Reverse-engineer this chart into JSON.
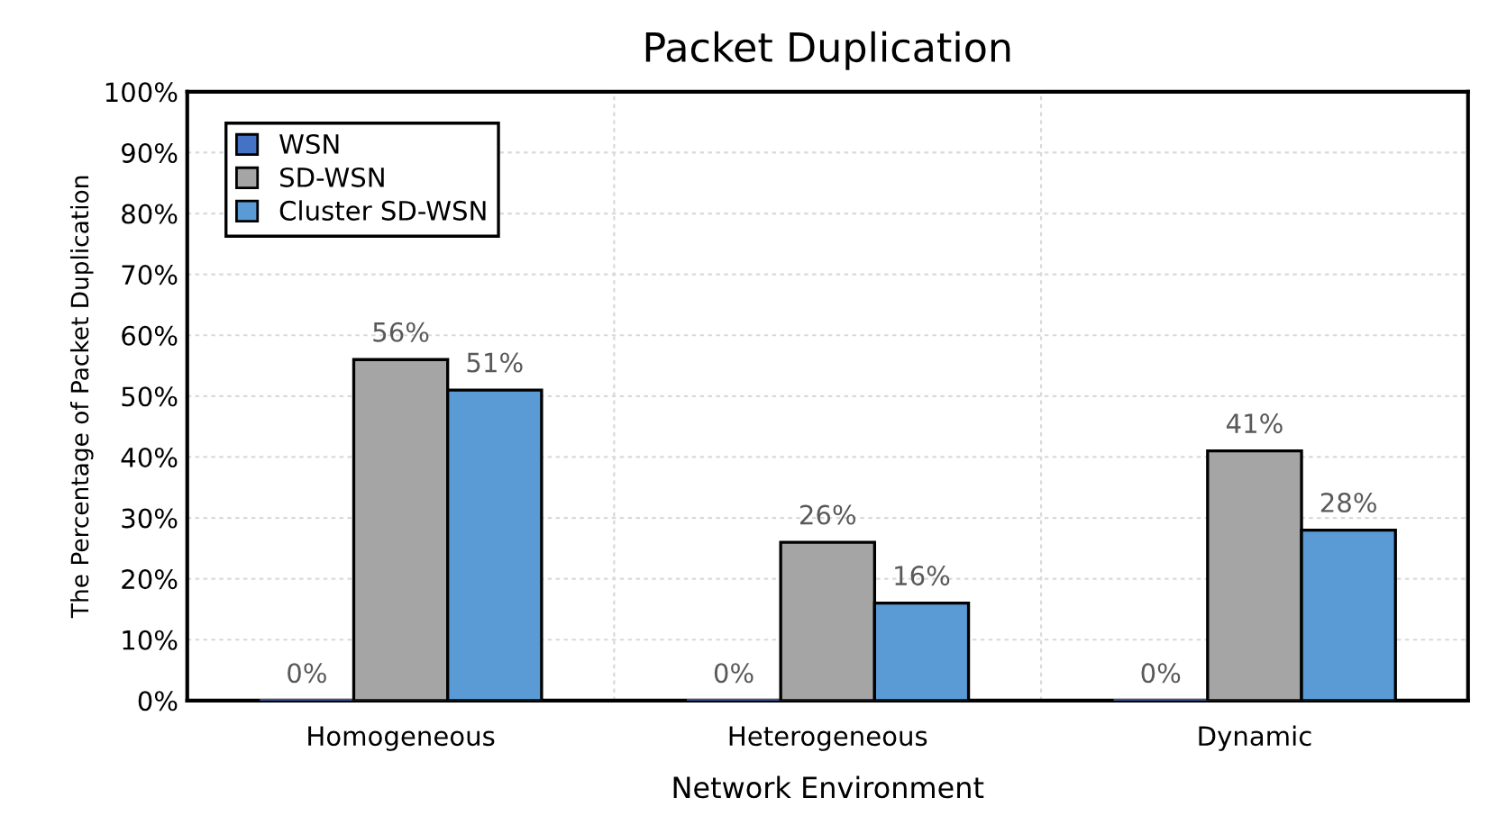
{
  "chart_data": {
    "type": "bar",
    "title": "Packet Duplication",
    "xlabel": "Network Environment",
    "ylabel": "The Percentage of Packet Duplication",
    "categories": [
      "Homogeneous",
      "Heterogeneous",
      "Dynamic"
    ],
    "series": [
      {
        "name": "WSN",
        "color": "#4472c4",
        "values": [
          0,
          0,
          0
        ],
        "value_labels": [
          "0%",
          "0%",
          "0%"
        ]
      },
      {
        "name": "SD-WSN",
        "color": "#a5a5a5",
        "values": [
          56,
          26,
          41
        ],
        "value_labels": [
          "56%",
          "26%",
          "41%"
        ]
      },
      {
        "name": "Cluster SD-WSN",
        "color": "#5b9bd5",
        "values": [
          51,
          16,
          28
        ],
        "value_labels": [
          "51%",
          "16%",
          "28%"
        ]
      }
    ],
    "ylim": [
      0,
      100
    ],
    "yticks": [
      {
        "value": 0,
        "label": "0%"
      },
      {
        "value": 10,
        "label": "10%"
      },
      {
        "value": 20,
        "label": "20%"
      },
      {
        "value": 30,
        "label": "30%"
      },
      {
        "value": 40,
        "label": "40%"
      },
      {
        "value": 50,
        "label": "50%"
      },
      {
        "value": 60,
        "label": "60%"
      },
      {
        "value": 70,
        "label": "70%"
      },
      {
        "value": 80,
        "label": "80%"
      },
      {
        "value": 90,
        "label": "90%"
      },
      {
        "value": 100,
        "label": "100%"
      }
    ],
    "grid": true,
    "legend": "top left"
  }
}
